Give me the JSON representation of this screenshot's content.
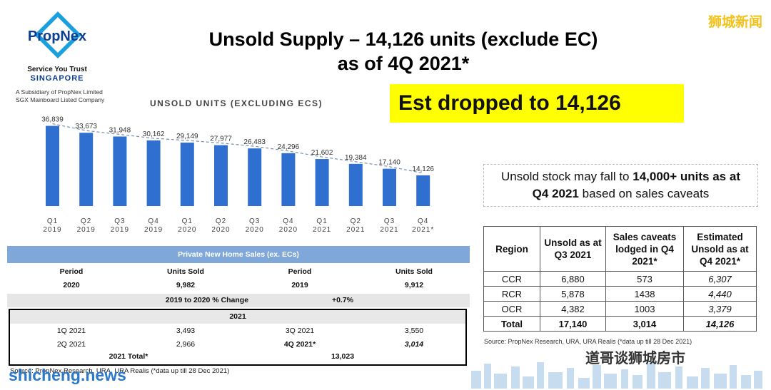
{
  "logo": {
    "brand": "PropNex",
    "tagline": "Service You Trust",
    "country": "SINGAPORE",
    "subsidiary_line1": "A Subsidiary of PropNex Limited",
    "subsidiary_line2": "SGX Mainboard Listed Company"
  },
  "title_line1": "Unsold Supply – 14,126 units (exclude EC)",
  "title_line2": "as of 4Q 2021*",
  "watermark_top": "狮城新闻",
  "highlight_text": "Est dropped to 14,126",
  "callout": {
    "pre": "Unsold stock may fall to ",
    "bold1": "14,000+ units as at",
    "bold2": "Q4 2021",
    "post": " based on sales caveats"
  },
  "chart_data": {
    "type": "bar",
    "title": "UNSOLD UNITS (EXCLUDING ECS)",
    "categories": [
      "Q1 2019",
      "Q2 2019",
      "Q3 2019",
      "Q4 2019",
      "Q1 2020",
      "Q2 2020",
      "Q3 2020",
      "Q4 2020",
      "Q1 2021",
      "Q2 2021",
      "Q3 2021",
      "Q4 2021*"
    ],
    "category_lines": [
      [
        "Q1",
        "2019"
      ],
      [
        "Q2",
        "2019"
      ],
      [
        "Q3",
        "2019"
      ],
      [
        "Q4",
        "2019"
      ],
      [
        "Q1",
        "2020"
      ],
      [
        "Q2",
        "2020"
      ],
      [
        "Q3",
        "2020"
      ],
      [
        "Q4",
        "2020"
      ],
      [
        "Q1",
        "2021"
      ],
      [
        "Q2",
        "2021"
      ],
      [
        "Q3",
        "2021"
      ],
      [
        "Q4",
        "2021*"
      ]
    ],
    "values": [
      36839,
      33673,
      31948,
      30162,
      29149,
      27977,
      26483,
      24296,
      21602,
      19384,
      17140,
      14126
    ],
    "labels": [
      "36,839",
      "33,673",
      "31,948",
      "30,162",
      "29,149",
      "27,977",
      "26,483",
      "24,296",
      "21,602",
      "19,384",
      "17,140",
      "14,126"
    ],
    "trendline": "dashed",
    "bar_color": "#2e6fd0",
    "ylim": [
      0,
      38000
    ]
  },
  "region_table": {
    "headers": [
      "Region",
      "Unsold as at Q3 2021",
      "Sales caveats lodged in Q4 2021*",
      "Estimated Unsold as at Q4 2021*"
    ],
    "rows": [
      [
        "CCR",
        "6,880",
        "573",
        "6,307"
      ],
      [
        "RCR",
        "5,878",
        "1438",
        "4,440"
      ],
      [
        "OCR",
        "4,382",
        "1003",
        "3,379"
      ],
      [
        "Total",
        "17,140",
        "3,014",
        "14,126"
      ]
    ],
    "source": "Source: PropNex Research, URA, URA Realis (*data up till 28 Dec 2021)"
  },
  "sales_table": {
    "header": "Private New Home Sales (ex. ECs)",
    "col_headers": [
      "Period",
      "Units Sold",
      "Period",
      "Units Sold"
    ],
    "row_2020": [
      "2020",
      "9,982",
      "2019",
      "9,912"
    ],
    "change_label": "2019 to 2020 % Change",
    "change_value": "+0.7%",
    "year_label": "2021",
    "row_q1q3": [
      "1Q 2021",
      "3,493",
      "3Q 2021",
      "3,550"
    ],
    "row_q2q4": [
      "2Q 2021",
      "2,966",
      "4Q 2021*",
      "3,014"
    ],
    "total_label": "2021 Total*",
    "total_value": "13,023",
    "source": "Source: PropNex Research, URA, URA Realis (*data up till 28 Dec 2021)"
  },
  "watermark_bottom": "shicheng.news",
  "watermark_br": "道哥谈狮城房市",
  "colors": {
    "brand_blue": "#0b3d91",
    "highlight": "#ffff00",
    "bar": "#2e6fd0",
    "table_header": "#7fa7d8"
  }
}
